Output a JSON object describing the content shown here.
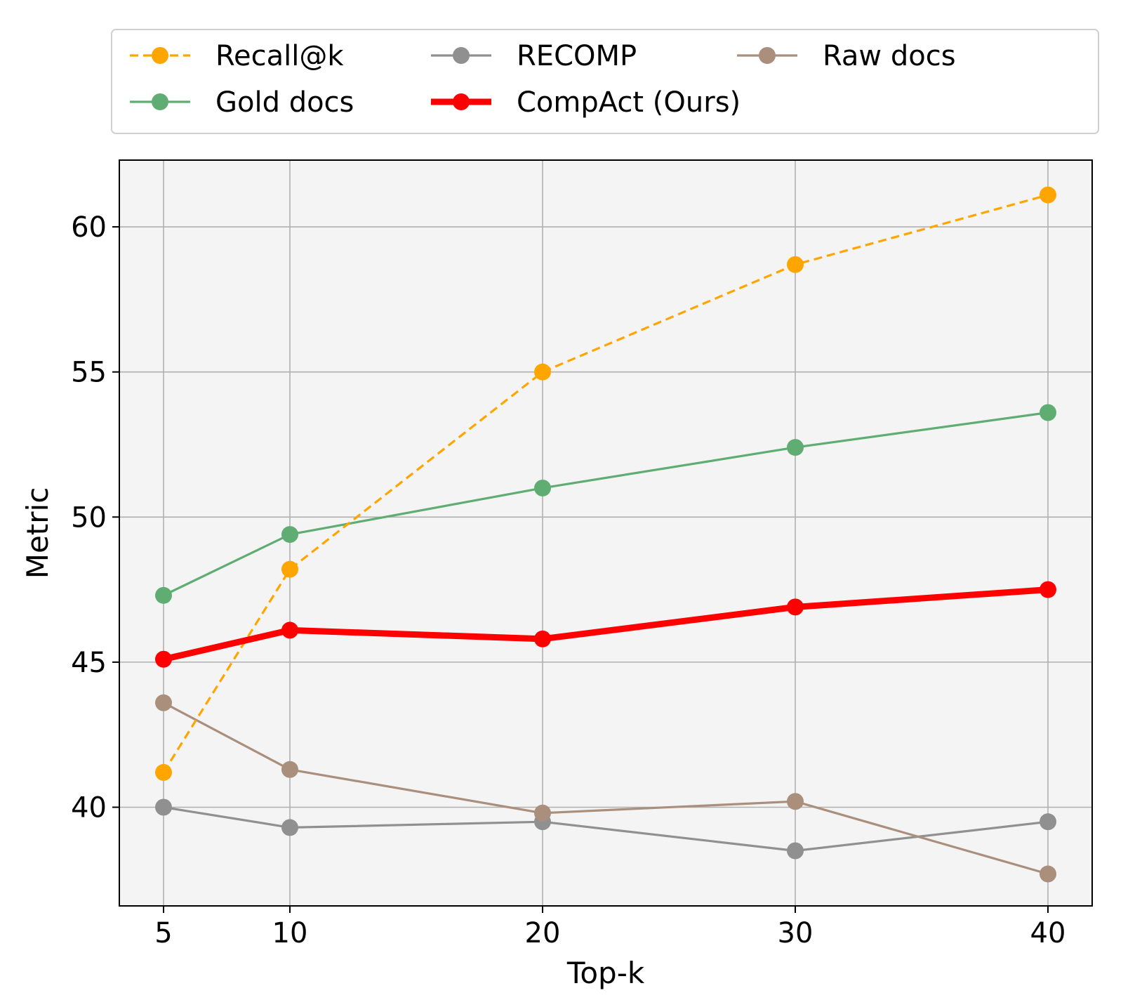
{
  "chart_data": {
    "type": "line",
    "title": "",
    "xlabel": "Top-k",
    "ylabel": "Metric",
    "x": [
      5,
      10,
      20,
      30,
      40
    ],
    "x_tick_labels": [
      "5",
      "10",
      "20",
      "30",
      "40"
    ],
    "y_ticks": [
      40,
      45,
      50,
      55,
      60
    ],
    "y_tick_labels": [
      "40",
      "45",
      "50",
      "55",
      "60"
    ],
    "xlim": [
      3.25,
      41.75
    ],
    "ylim": [
      36.6,
      62.3
    ],
    "grid": true,
    "background_color": "#f4f4f4",
    "legend_placement": "top, above plot",
    "series": [
      {
        "name": "Recall@k",
        "color": "#ffa500",
        "dashed": true,
        "bold": false,
        "values": [
          41.2,
          48.2,
          55.0,
          58.7,
          61.1
        ]
      },
      {
        "name": "RECOMP",
        "color": "#909090",
        "dashed": false,
        "bold": false,
        "values": [
          40.0,
          39.3,
          39.5,
          38.5,
          39.5
        ]
      },
      {
        "name": "Raw docs",
        "color": "#a98f7c",
        "dashed": false,
        "bold": false,
        "values": [
          43.6,
          41.3,
          39.8,
          40.2,
          37.7
        ]
      },
      {
        "name": "Gold docs",
        "color": "#5fad73",
        "dashed": false,
        "bold": false,
        "values": [
          47.3,
          49.4,
          51.0,
          52.4,
          53.6
        ]
      },
      {
        "name": "CompAct (Ours)",
        "color": "#ff0000",
        "dashed": false,
        "bold": true,
        "values": [
          45.1,
          46.1,
          45.8,
          46.9,
          47.5
        ]
      }
    ]
  }
}
